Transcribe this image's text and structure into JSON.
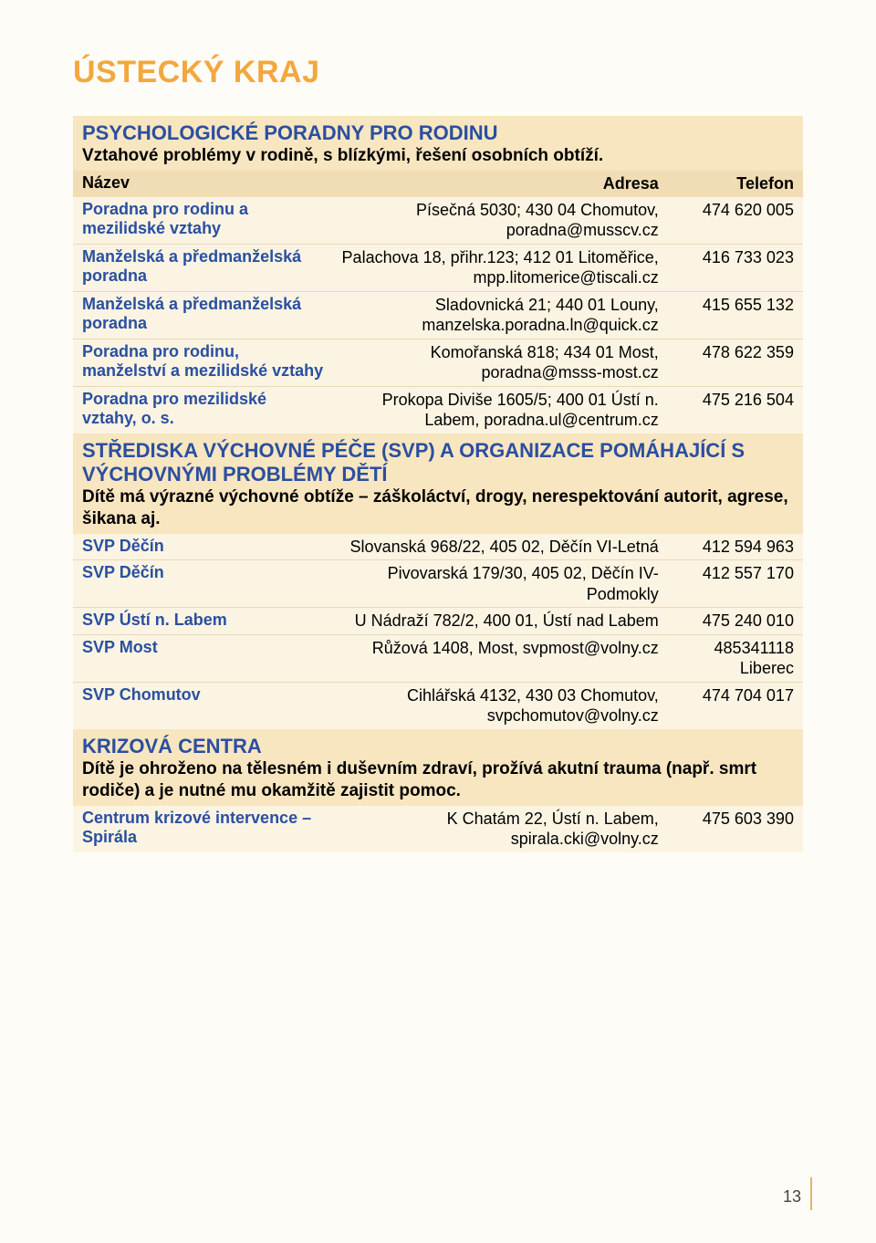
{
  "page": {
    "title": "ÚSTECKÝ KRAJ",
    "number": "13"
  },
  "colors": {
    "accent_orange": "#f3a73d",
    "accent_blue": "#2a4fa0",
    "header_bg": "#f8e6c0",
    "tblhead_bg": "#f1ddb5",
    "row_bg": "#fbf4e3",
    "divider": "#e9d9b4"
  },
  "sections": [
    {
      "title": "PSYCHOLOGICKÉ PORADNY PRO RODINU",
      "desc": "Vztahové problémy v rodině, s blízkými, řešení osobních obtíží.",
      "head": {
        "c1": "Název",
        "c2": "Adresa",
        "c3": "Telefon"
      },
      "rows": [
        {
          "name": "Poradna pro rodinu a mezilidské vztahy",
          "addr": "Písečná 5030; 430 04 Chomutov, poradna@musscv.cz",
          "tel": "474 620 005"
        },
        {
          "name": "Manželská a předmanželská poradna",
          "addr": "Palachova 18, přihr.123; 412 01 Litoměřice, mpp.litomerice@tiscali.cz",
          "tel": "416 733 023"
        },
        {
          "name": "Manželská a předmanželská poradna",
          "addr": "Sladovnická 21; 440 01 Louny, manzelska.poradna.ln@quick.cz",
          "tel": "415 655 132"
        },
        {
          "name": "Poradna pro rodinu, manželství a mezilidské vztahy",
          "addr": "Komořanská 818; 434 01 Most, poradna@msss-most.cz",
          "tel": "478 622 359"
        },
        {
          "name": "Poradna pro mezilidské vztahy, o. s.",
          "addr": "Prokopa Diviše 1605/5; 400 01 Ústí n. Labem, poradna.ul@centrum.cz",
          "tel": "475 216 504"
        }
      ]
    },
    {
      "title": "STŘEDISKA VÝCHOVNÉ PÉČE (SVP) A ORGANIZACE POMÁHAJÍCÍ S VÝCHOVNÝMI PROBLÉMY DĚTÍ",
      "desc": "Dítě má výrazné výchovné obtíže – záškoláctví, drogy, nerespektování autorit, agrese, šikana aj.",
      "rows": [
        {
          "name": "SVP Děčín",
          "addr": "Slovanská 968/22, 405 02, Děčín VI-Letná",
          "tel": "412 594 963"
        },
        {
          "name": "SVP Děčín",
          "addr": "Pivovarská 179/30, 405 02, Děčín IV-Podmokly",
          "tel": "412 557 170"
        },
        {
          "name": "SVP Ústí n. Labem",
          "addr": "U Nádraží 782/2, 400 01, Ústí nad Labem",
          "tel": "475 240 010"
        },
        {
          "name": "SVP Most",
          "addr": "Růžová 1408, Most, svpmost@volny.cz",
          "tel": "485341118 Liberec"
        },
        {
          "name": "SVP Chomutov",
          "addr": "Cihlářská 4132, 430 03 Chomutov, svpchomutov@volny.cz",
          "tel": "474 704 017"
        }
      ]
    },
    {
      "title": "KRIZOVÁ CENTRA",
      "desc": "Dítě je ohroženo na tělesném i duševním zdraví, prožívá akutní trauma (např. smrt rodiče) a je nutné mu okamžitě zajistit pomoc.",
      "rows": [
        {
          "name": "Centrum krizové intervence – Spirála",
          "addr": "K Chatám 22, Ústí n. Labem, spirala.cki@volny.cz",
          "tel": "475 603 390"
        }
      ]
    }
  ]
}
